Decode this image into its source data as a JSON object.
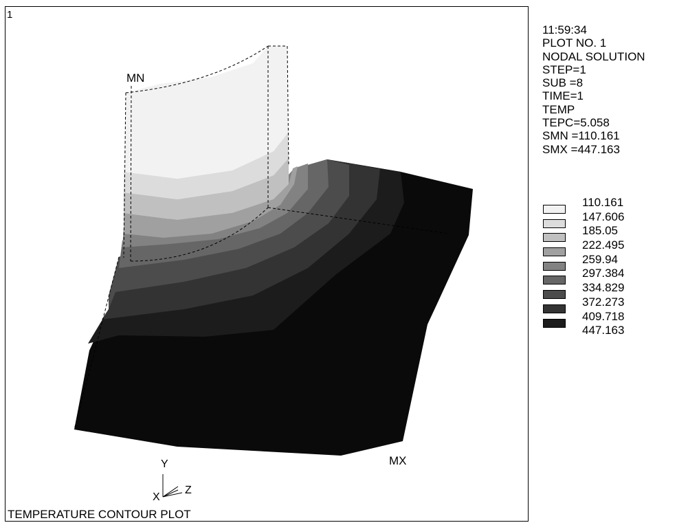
{
  "window": {
    "number": "1"
  },
  "info": {
    "time": "11:59:34",
    "plot_no": "PLOT NO.   1",
    "solution": "NODAL SOLUTION",
    "step": "STEP=1",
    "sub": "SUB =8",
    "time_value": "TIME=1",
    "item": "TEMP",
    "tepc": "TEPC=5.058",
    "smn": "SMN =110.161",
    "smx": "SMX =447.163"
  },
  "legend": {
    "values": [
      "110.161",
      "147.606",
      "185.05",
      "222.495",
      "259.94",
      "297.384",
      "334.829",
      "372.273",
      "409.718",
      "447.163"
    ],
    "colors": [
      "#f2f2f2",
      "#dcdcdc",
      "#c0c0c0",
      "#a0a0a0",
      "#828282",
      "#666666",
      "#4c4c4c",
      "#333333",
      "#1c1c1c",
      "#0a0a0a"
    ]
  },
  "labels": {
    "mn": "MN",
    "mx": "MX",
    "plot_title": "TEMPERATURE CONTOUR PLOT"
  },
  "axes": {
    "y": "Y",
    "z": "Z",
    "x": "X"
  }
}
